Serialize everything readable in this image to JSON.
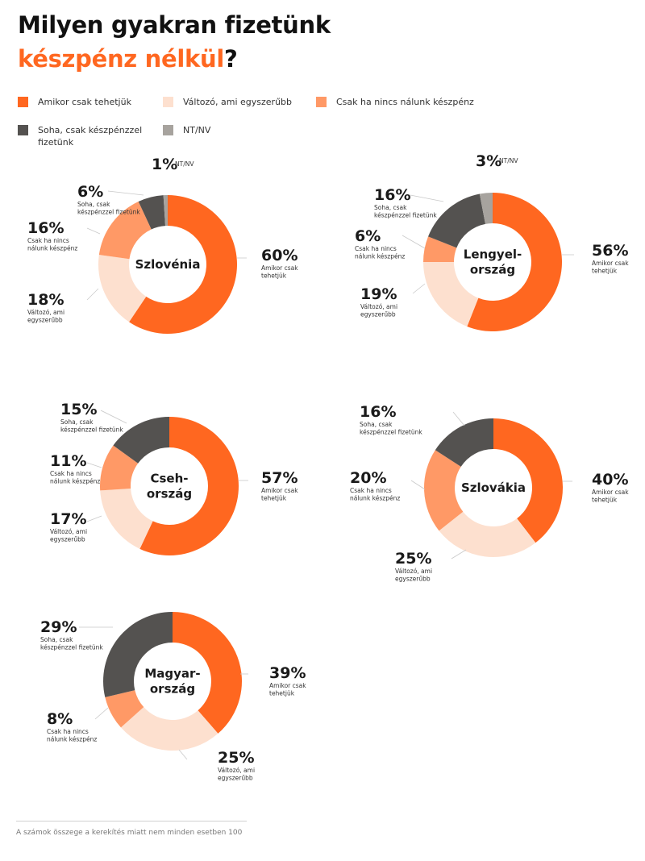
{
  "title": {
    "line1": "Milyen gyakran fizetünk",
    "line2_accent": "készpénz nélkül",
    "line2_end": "?"
  },
  "footnote": "A számok összege a kerekítés miatt nem minden esetben 100",
  "colors": {
    "amikor": "#ff6720",
    "valtozo": "#fde0cf",
    "csak": "#ff9966",
    "soha": "#545250",
    "ntnv": "#a7a39e"
  },
  "legend": [
    {
      "key": "amikor",
      "label": "Amikor csak tehetjük"
    },
    {
      "key": "valtozo",
      "label": "Változó, ami egyszerűbb"
    },
    {
      "key": "csak",
      "label": "Csak ha nincs nálunk készpénz"
    },
    {
      "key": "soha",
      "label": "Soha, csak készpénzzel fizetünk"
    },
    {
      "key": "ntnv",
      "label": "NT/NV"
    }
  ],
  "chart_data": [
    {
      "type": "pie",
      "center_label": [
        "Szlovénia"
      ],
      "slices": [
        {
          "key": "amikor",
          "value": 60,
          "text": "60%",
          "label": [
            "Amikor csak",
            "tehetjük"
          ]
        },
        {
          "key": "valtozo",
          "value": 18,
          "text": "18%",
          "label": [
            "Változó, ami",
            "egyszerűbb"
          ]
        },
        {
          "key": "csak",
          "value": 16,
          "text": "16%",
          "label": [
            "Csak ha nincs",
            "nálunk készpénz"
          ]
        },
        {
          "key": "soha",
          "value": 6,
          "text": "6%",
          "label": [
            "Soha, csak",
            "készpénzzel fizetünk"
          ]
        },
        {
          "key": "ntnv",
          "value": 1,
          "text": "1%",
          "label": [
            "NT/NV"
          ]
        }
      ]
    },
    {
      "type": "pie",
      "center_label": [
        "Lengyel-",
        "ország"
      ],
      "slices": [
        {
          "key": "amikor",
          "value": 56,
          "text": "56%",
          "label": [
            "Amikor csak",
            "tehetjük"
          ]
        },
        {
          "key": "valtozo",
          "value": 19,
          "text": "19%",
          "label": [
            "Változó, ami",
            "egyszerűbb"
          ]
        },
        {
          "key": "csak",
          "value": 6,
          "text": "6%",
          "label": [
            "Csak ha nincs",
            "nálunk készpénz"
          ]
        },
        {
          "key": "soha",
          "value": 16,
          "text": "16%",
          "label": [
            "Soha, csak",
            "készpénzzel fizetünk"
          ]
        },
        {
          "key": "ntnv",
          "value": 3,
          "text": "3%",
          "label": [
            "NT/NV"
          ]
        }
      ]
    },
    {
      "type": "pie",
      "center_label": [
        "Cseh-",
        "ország"
      ],
      "slices": [
        {
          "key": "amikor",
          "value": 57,
          "text": "57%",
          "label": [
            "Amikor csak",
            "tehetjük"
          ]
        },
        {
          "key": "valtozo",
          "value": 17,
          "text": "17%",
          "label": [
            "Változó, ami",
            "egyszerűbb"
          ]
        },
        {
          "key": "csak",
          "value": 11,
          "text": "11%",
          "label": [
            "Csak ha nincs",
            "nálunk készpénz"
          ]
        },
        {
          "key": "soha",
          "value": 15,
          "text": "15%",
          "label": [
            "Soha, csak",
            "készpénzzel fizetünk"
          ]
        }
      ]
    },
    {
      "type": "pie",
      "center_label": [
        "Szlovákia"
      ],
      "slices": [
        {
          "key": "amikor",
          "value": 40,
          "text": "40%",
          "label": [
            "Amikor csak",
            "tehetjük"
          ]
        },
        {
          "key": "valtozo",
          "value": 25,
          "text": "25%",
          "label": [
            "Változó, ami",
            "egyszerűbb"
          ]
        },
        {
          "key": "csak",
          "value": 20,
          "text": "20%",
          "label": [
            "Csak ha nincs",
            "nálunk készpénz"
          ]
        },
        {
          "key": "soha",
          "value": 16,
          "text": "16%",
          "label": [
            "Soha, csak",
            "készpénzzel fizetünk"
          ]
        }
      ]
    },
    {
      "type": "pie",
      "center_label": [
        "Magyar-",
        "ország"
      ],
      "slices": [
        {
          "key": "amikor",
          "value": 39,
          "text": "39%",
          "label": [
            "Amikor csak",
            "tehetjük"
          ]
        },
        {
          "key": "valtozo",
          "value": 25,
          "text": "25%",
          "label": [
            "Változó, ami",
            "egyszerűbb"
          ]
        },
        {
          "key": "csak",
          "value": 8,
          "text": "8%",
          "label": [
            "Csak ha nincs",
            "nálunk készpénz"
          ]
        },
        {
          "key": "soha",
          "value": 29,
          "text": "29%",
          "label": [
            "Soha, csak",
            "készpénzzel fizetünk"
          ]
        }
      ]
    }
  ]
}
